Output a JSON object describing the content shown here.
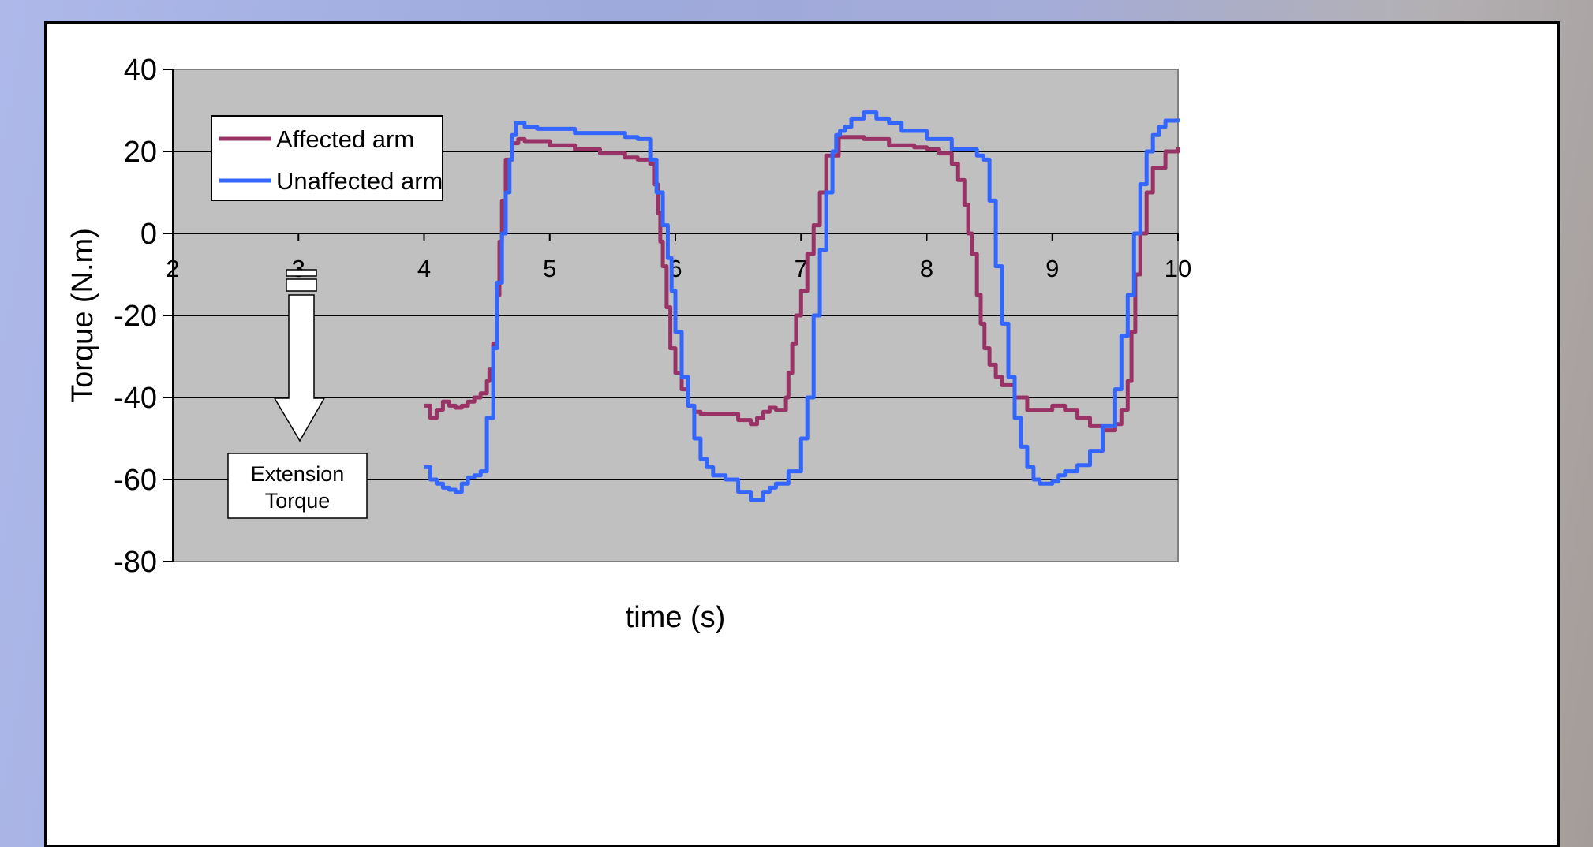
{
  "chart_data": {
    "type": "line",
    "title": "",
    "xlabel": "time (s)",
    "ylabel": "Torque (N.m)",
    "xlim": [
      2,
      10
    ],
    "ylim": [
      -80,
      40
    ],
    "x_ticks": [
      "2",
      "3",
      "4",
      "5",
      "6",
      "7",
      "8",
      "9",
      "10"
    ],
    "y_ticks": [
      "40",
      "20",
      "0",
      "-20",
      "-40",
      "-60",
      "-80"
    ],
    "grid": "horizontal",
    "legend_position": "top-left",
    "series": [
      {
        "name": "Affected arm",
        "color": "#993366",
        "x": [
          4.0,
          4.05,
          4.1,
          4.15,
          4.2,
          4.25,
          4.3,
          4.35,
          4.4,
          4.45,
          4.5,
          4.52,
          4.55,
          4.58,
          4.6,
          4.62,
          4.65,
          4.7,
          4.75,
          4.8,
          5.0,
          5.2,
          5.4,
          5.6,
          5.7,
          5.8,
          5.83,
          5.86,
          5.88,
          5.9,
          5.93,
          5.96,
          6.0,
          6.05,
          6.1,
          6.15,
          6.2,
          6.3,
          6.4,
          6.5,
          6.6,
          6.65,
          6.7,
          6.75,
          6.8,
          6.85,
          6.88,
          6.9,
          6.93,
          6.96,
          7.0,
          7.05,
          7.1,
          7.15,
          7.2,
          7.3,
          7.5,
          7.7,
          7.9,
          8.0,
          8.1,
          8.2,
          8.25,
          8.3,
          8.33,
          8.36,
          8.4,
          8.43,
          8.46,
          8.5,
          8.55,
          8.6,
          8.7,
          8.8,
          8.9,
          9.0,
          9.1,
          9.2,
          9.3,
          9.4,
          9.5,
          9.55,
          9.6,
          9.63,
          9.66,
          9.7,
          9.75,
          9.8,
          9.9,
          10.0
        ],
        "y": [
          -42,
          -45,
          -43,
          -41,
          -42,
          -42.5,
          -42,
          -41,
          -40,
          -39,
          -36,
          -33,
          -27,
          -15,
          -2,
          8,
          18,
          22,
          23,
          22.5,
          21.5,
          20.5,
          19.5,
          18.5,
          18,
          17,
          12,
          5,
          -2,
          -8,
          -18,
          -28,
          -34,
          -38,
          -42,
          -43.5,
          -44,
          -44,
          -44,
          -45.5,
          -46.5,
          -45,
          -43.5,
          -42.5,
          -43,
          -43,
          -40,
          -34,
          -27,
          -20,
          -14,
          -5,
          2,
          10,
          19,
          23.5,
          23,
          21.5,
          21,
          20.5,
          19.5,
          17,
          13,
          7,
          0,
          -5,
          -15,
          -22,
          -28,
          -32,
          -35,
          -37,
          -40,
          -43,
          -43,
          -42,
          -43,
          -45,
          -47,
          -48,
          -46.5,
          -43,
          -36,
          -24,
          -10,
          0,
          10,
          16,
          20,
          21
        ]
      },
      {
        "name": "Unaffected arm",
        "color": "#3366ff",
        "x": [
          4.0,
          4.05,
          4.1,
          4.15,
          4.2,
          4.25,
          4.3,
          4.35,
          4.4,
          4.45,
          4.5,
          4.55,
          4.58,
          4.62,
          4.65,
          4.68,
          4.7,
          4.73,
          4.76,
          4.8,
          4.9,
          5.0,
          5.2,
          5.4,
          5.6,
          5.7,
          5.8,
          5.85,
          5.9,
          5.94,
          5.97,
          6.0,
          6.05,
          6.1,
          6.15,
          6.2,
          6.25,
          6.3,
          6.4,
          6.5,
          6.6,
          6.7,
          6.75,
          6.8,
          6.9,
          7.0,
          7.05,
          7.1,
          7.15,
          7.2,
          7.25,
          7.28,
          7.31,
          7.35,
          7.4,
          7.5,
          7.6,
          7.7,
          7.8,
          8.0,
          8.2,
          8.4,
          8.45,
          8.5,
          8.55,
          8.6,
          8.65,
          8.7,
          8.75,
          8.8,
          8.85,
          8.9,
          8.95,
          9.0,
          9.05,
          9.1,
          9.2,
          9.3,
          9.4,
          9.5,
          9.55,
          9.6,
          9.65,
          9.7,
          9.75,
          9.8,
          9.85,
          9.9,
          10.0
        ],
        "y": [
          -57,
          -60,
          -61,
          -62,
          -62.5,
          -63,
          -61,
          -59.5,
          -59,
          -58,
          -45,
          -28,
          -12,
          0,
          10,
          18,
          24,
          27,
          27,
          26,
          25.5,
          25.5,
          24.5,
          24.5,
          23.5,
          23,
          18,
          10,
          2,
          -6,
          -14,
          -24,
          -35,
          -42,
          -50,
          -55,
          -57,
          -59,
          -60,
          -63,
          -65,
          -63,
          -62,
          -61,
          -58,
          -50,
          -40,
          -20,
          -4,
          10,
          20,
          24,
          25,
          26,
          28,
          29.5,
          28,
          27,
          25,
          23,
          20.5,
          19,
          18,
          8,
          -8,
          -22,
          -35,
          -45,
          -52,
          -57,
          -60,
          -61,
          -61,
          -60.5,
          -59,
          -58,
          -56.5,
          -53,
          -47,
          -38,
          -25,
          -15,
          0,
          12,
          20,
          24,
          26,
          27.5,
          28
        ]
      }
    ],
    "annotations": [
      {
        "text": "Extension Torque",
        "line1": "Extension",
        "line2": "Torque"
      }
    ]
  }
}
